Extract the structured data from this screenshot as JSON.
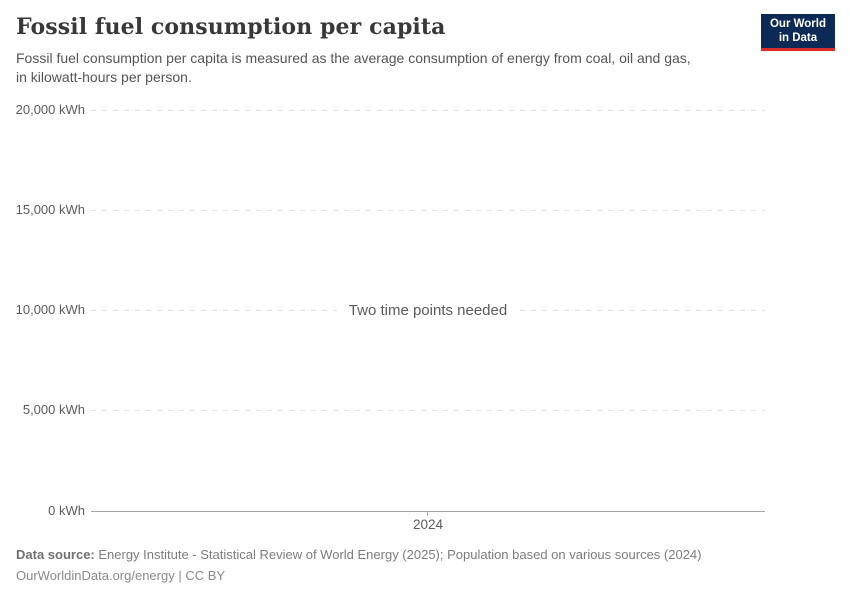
{
  "header": {
    "title": "Fossil fuel consumption per capita",
    "subtitle_lines": [
      "Fossil fuel consumption per capita is measured as the average consumption of energy from coal, oil and gas,",
      "in kilowatt-hours per person."
    ],
    "logo": {
      "line1": "Our World",
      "line2": "in Data",
      "bg_color": "#0d2a57",
      "accent_color": "#d72d28"
    }
  },
  "chart_data": {
    "type": "line",
    "title": "Fossil fuel consumption per capita",
    "series": [],
    "message": "Two time points needed",
    "y_ticks": [
      "0 kWh",
      "5,000 kWh",
      "10,000 kWh",
      "15,000 kWh",
      "20,000 kWh"
    ],
    "x_ticks": [
      "2024"
    ],
    "ylim": [
      0,
      20000
    ],
    "ylabel": "kWh",
    "grid": true,
    "legend": "none",
    "gridline_color": "#e2e2e2",
    "axis_color": "#a6a6a6"
  },
  "footer": {
    "source_label": "Data source:",
    "source_text": " Energy Institute - Statistical Review of World Energy (2025); Population based on various sources (2024)",
    "license_line": "OurWorldinData.org/energy | CC BY"
  }
}
